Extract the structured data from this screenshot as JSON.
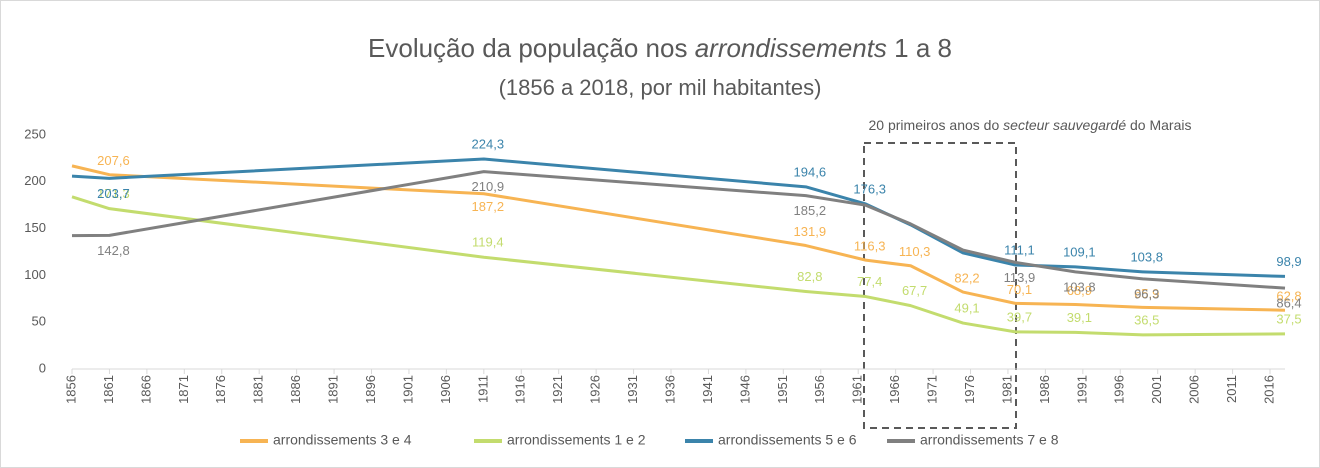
{
  "chart_data": {
    "type": "line",
    "title": [
      "Evolução da população nos ",
      "arrondissements",
      " 1 a 8"
    ],
    "subtitle": "(1856 a 2018, por mil habitantes)",
    "annotation": [
      "20 primeiros anos do ",
      "secteur sauvegardé",
      " do Marais"
    ],
    "x": [
      1856,
      1861,
      1911,
      1954,
      1962,
      1968,
      1975,
      1982,
      1990,
      1999,
      2018
    ],
    "xlim": [
      1856,
      2018
    ],
    "xticks": [
      1856,
      1861,
      1866,
      1871,
      1876,
      1881,
      1886,
      1891,
      1896,
      1901,
      1906,
      1911,
      1916,
      1921,
      1926,
      1931,
      1936,
      1941,
      1946,
      1951,
      1956,
      1961,
      1966,
      1971,
      1976,
      1981,
      1986,
      1991,
      1996,
      2001,
      2006,
      2011,
      2016
    ],
    "ylim": [
      0,
      250
    ],
    "yticks": [
      0,
      50,
      100,
      150,
      200,
      250
    ],
    "grid": false,
    "legend": "bottom",
    "series": [
      {
        "name": "arrondissements 3 e 4",
        "color": "#f7b453",
        "values": [
          217,
          207.6,
          187.2,
          131.9,
          116.3,
          110.3,
          82.2,
          70.1,
          68.9,
          65.9,
          62.8
        ],
        "value_labels": [
          null,
          "207,6",
          "187,2",
          "131,9",
          "116,3",
          "110,3",
          "82,2",
          "70,1",
          "68,9",
          "65,9",
          "62,8"
        ]
      },
      {
        "name": "arrondissements 1 e 2",
        "color": "#c3dc6e",
        "values": [
          184,
          171.3,
          119.4,
          82.8,
          77.4,
          67.7,
          49.1,
          39.7,
          39.1,
          36.5,
          37.5
        ],
        "value_labels": [
          null,
          "171,3",
          "119,4",
          "82,8",
          "77,4",
          "67,7",
          "49,1",
          "39,7",
          "39,1",
          "36,5",
          "37,5"
        ]
      },
      {
        "name": "arrondissements 5 e 6",
        "color": "#3b84ab",
        "values": [
          206,
          203.7,
          224.3,
          194.6,
          176.3,
          154,
          124,
          111.1,
          109.1,
          103.8,
          98.9
        ],
        "value_labels": [
          null,
          "203,7",
          "224,3",
          "194,6",
          "176,3",
          null,
          null,
          "111,1",
          "109,1",
          "103,8",
          "98,9"
        ]
      },
      {
        "name": "arrondissements 7 e 8",
        "color": "#808080",
        "values": [
          142.5,
          142.8,
          210.9,
          185.2,
          175,
          155,
          127,
          113.9,
          103.8,
          96.3,
          86.4
        ],
        "value_labels": [
          null,
          "142,8",
          "210,9",
          "185,2",
          null,
          null,
          null,
          "113,9",
          "103,8",
          "96,3",
          "86,4"
        ]
      }
    ]
  }
}
